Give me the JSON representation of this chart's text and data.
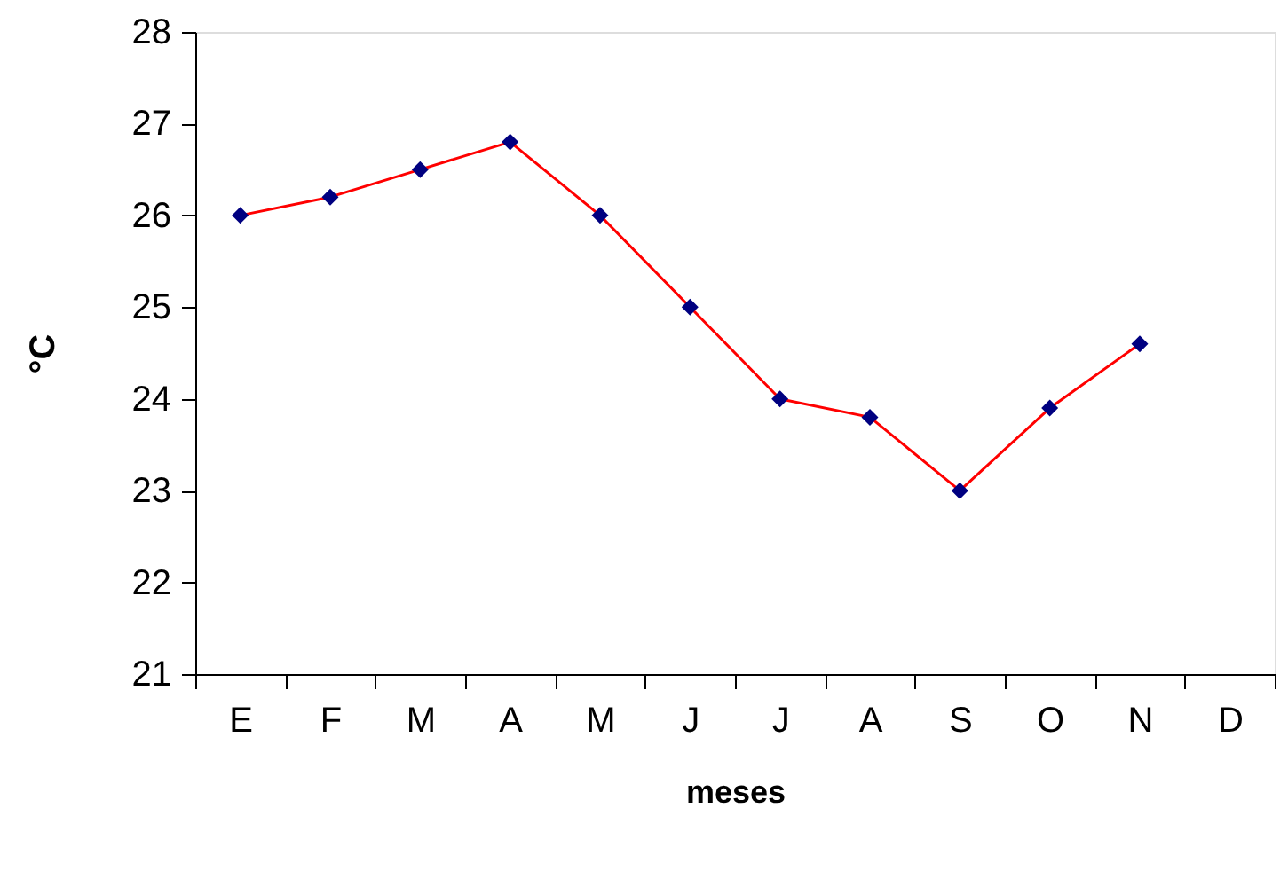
{
  "chart_data": {
    "type": "line",
    "xlabel": "meses",
    "ylabel": "°C",
    "categories": [
      "E",
      "F",
      "M",
      "A",
      "M",
      "J",
      "J",
      "A",
      "S",
      "O",
      "N",
      "D"
    ],
    "series": [
      {
        "color": "#ff0000",
        "values": [
          26.0,
          26.2,
          26.5,
          26.8,
          26.0,
          25.0,
          24.0,
          23.8,
          23.0,
          23.9,
          24.6,
          null
        ]
      }
    ],
    "ylim": [
      21,
      28
    ],
    "yticks": [
      21,
      22,
      23,
      24,
      25,
      26,
      27,
      28
    ],
    "grid": false,
    "marker": "diamond",
    "line_style": "solid"
  }
}
